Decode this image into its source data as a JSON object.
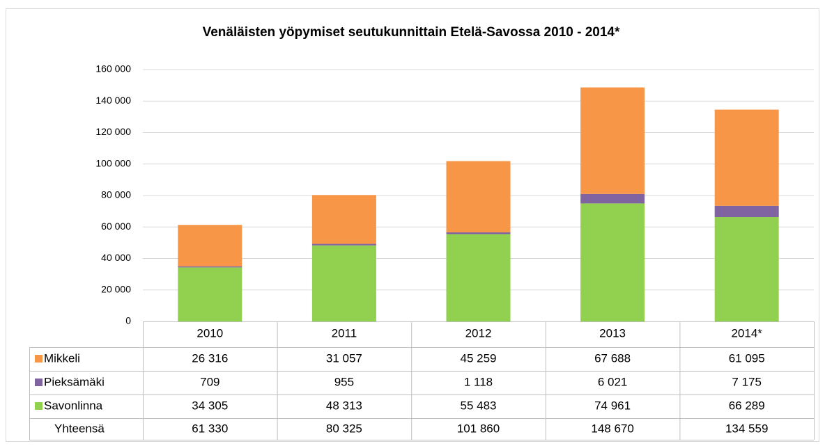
{
  "chart_data": {
    "type": "bar",
    "stacked": true,
    "title": "Venäläisten yöpymiset seutukunnittain Etelä-Savossa 2010 - 2014*",
    "categories": [
      "2010",
      "2011",
      "2012",
      "2013",
      "2014*"
    ],
    "series": [
      {
        "name": "Savonlinna",
        "color": "#92d050",
        "values": [
          34305,
          48313,
          55483,
          74961,
          66289
        ],
        "value_labels": [
          "34 305",
          "48 313",
          "55 483",
          "74 961",
          "66 289"
        ]
      },
      {
        "name": "Pieksämäki",
        "color": "#8064a2",
        "values": [
          709,
          955,
          1118,
          6021,
          7175
        ],
        "value_labels": [
          "709",
          "955",
          "1 118",
          "6 021",
          "7 175"
        ]
      },
      {
        "name": "Mikkeli",
        "color": "#f79646",
        "values": [
          26316,
          31057,
          45259,
          67688,
          61095
        ],
        "value_labels": [
          "26 316",
          "31 057",
          "45 259",
          "67 688",
          "61 095"
        ]
      }
    ],
    "totals": {
      "name": "Yhteensä",
      "values": [
        61330,
        80325,
        101860,
        148670,
        134559
      ],
      "value_labels": [
        "61 330",
        "80 325",
        "101 860",
        "148 670",
        "134 559"
      ]
    },
    "ylim": [
      0,
      160000
    ],
    "yticks": [
      0,
      {
        "value": 20000,
        "label": "20 000"
      },
      {
        "value": 40000,
        "label": "40 000"
      },
      {
        "value": 60000,
        "label": "60 000"
      },
      {
        "value": 80000,
        "label": "80 000"
      },
      {
        "value": 100000,
        "label": "100 000"
      },
      {
        "value": 120000,
        "label": "120 000"
      },
      {
        "value": 140000,
        "label": "140 000"
      },
      {
        "value": 160000,
        "label": "160 000"
      }
    ],
    "grid": true
  }
}
